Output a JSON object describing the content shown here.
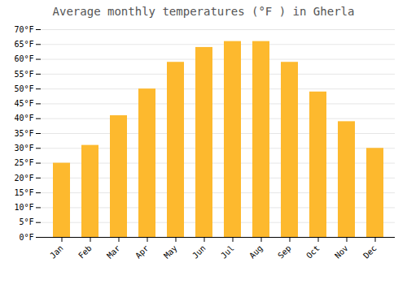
{
  "chart_data": {
    "type": "bar",
    "title": "Average monthly temperatures (°F ) in Gherla",
    "categories": [
      "Jan",
      "Feb",
      "Mar",
      "Apr",
      "May",
      "Jun",
      "Jul",
      "Aug",
      "Sep",
      "Oct",
      "Nov",
      "Dec"
    ],
    "values": [
      25,
      31,
      41,
      50,
      59,
      64,
      66,
      66,
      59,
      49,
      39,
      30
    ],
    "color": "#FDB92E",
    "ylim": [
      0,
      70
    ],
    "yticks": [
      {
        "value": 0,
        "label": "0°F"
      },
      {
        "value": 5,
        "label": "5°F"
      },
      {
        "value": 10,
        "label": "10°F"
      },
      {
        "value": 15,
        "label": "15°F"
      },
      {
        "value": 20,
        "label": "20°F"
      },
      {
        "value": 25,
        "label": "25°F"
      },
      {
        "value": 30,
        "label": "30°F"
      },
      {
        "value": 35,
        "label": "35°F"
      },
      {
        "value": 40,
        "label": "40°F"
      },
      {
        "value": 45,
        "label": "45°F"
      },
      {
        "value": 50,
        "label": "50°F"
      },
      {
        "value": 55,
        "label": "55°F"
      },
      {
        "value": 60,
        "label": "60°F"
      },
      {
        "value": 65,
        "label": "65°F"
      },
      {
        "value": 70,
        "label": "70°F"
      }
    ],
    "grid": true
  }
}
